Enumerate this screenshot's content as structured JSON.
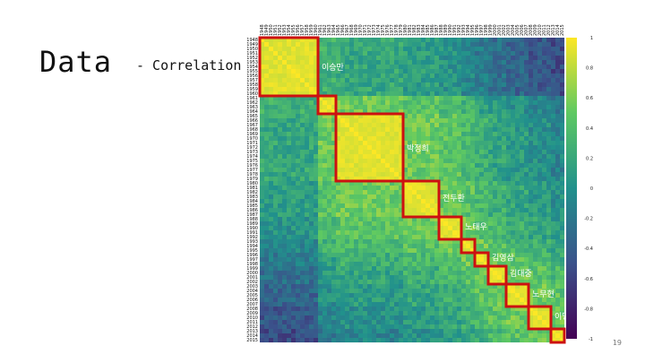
{
  "slide": {
    "title": "Data",
    "subtitle": "- Correlation",
    "page_number": "19"
  },
  "chart_data": {
    "type": "heatmap",
    "years_start": 1948,
    "years_end": 2015,
    "xlabel": "",
    "ylabel": "",
    "colorbar": {
      "range": [
        -1,
        1
      ],
      "ticks": [
        "1",
        "0.8",
        "0.6",
        "0.4",
        "0.2",
        "0",
        "-0.2",
        "-0.4",
        "-0.6",
        "-0.8",
        "-1"
      ],
      "colormap": [
        "#440154",
        "#3b528b",
        "#21918c",
        "#5ec962",
        "#fde725"
      ]
    },
    "blocks": [
      {
        "label": "이승만",
        "start": 1948,
        "end": 1960
      },
      {
        "label": "",
        "start": 1961,
        "end": 1964
      },
      {
        "label": "박정희",
        "start": 1965,
        "end": 1979
      },
      {
        "label": "전두환",
        "start": 1980,
        "end": 1987
      },
      {
        "label": "노태우",
        "start": 1988,
        "end": 1992
      },
      {
        "label": "",
        "start": 1993,
        "end": 1995
      },
      {
        "label": "김영삼",
        "start": 1996,
        "end": 1998
      },
      {
        "label": "김대중",
        "start": 1999,
        "end": 2002
      },
      {
        "label": "노무현",
        "start": 2003,
        "end": 2007
      },
      {
        "label": "이명박",
        "start": 2008,
        "end": 2012
      },
      {
        "label": "박근혜",
        "start": 2013,
        "end": 2015
      }
    ],
    "block_outline_color": "#cc1111"
  }
}
